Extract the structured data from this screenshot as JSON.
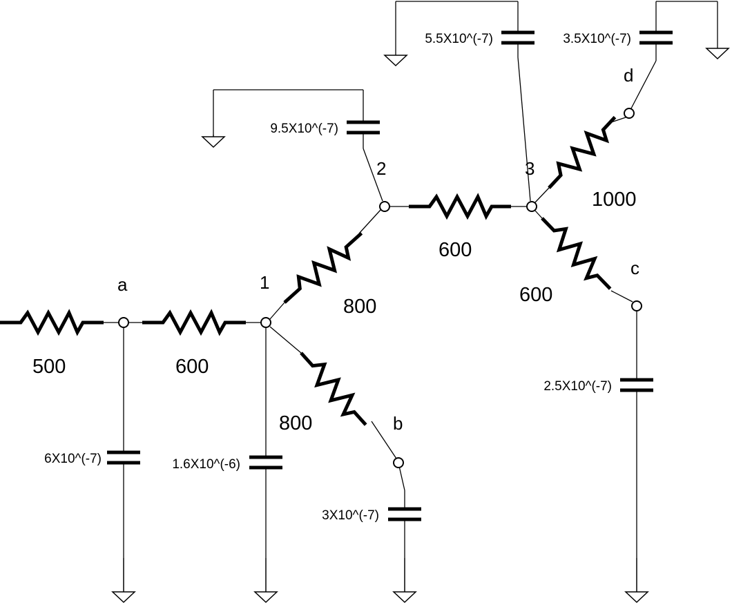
{
  "nodes": {
    "a": "a",
    "b": "b",
    "c": "c",
    "d": "d",
    "n1": "1",
    "n2": "2",
    "n3": "3"
  },
  "resistors": {
    "r_source": "500",
    "r_a1": "600",
    "r_12": "800",
    "r_1b": "800",
    "r_23": "600",
    "r_3d": "1000",
    "r_3c": "600"
  },
  "capacitors": {
    "c_a": "6X10^(-7)",
    "c_1": "1.6X10^(-6)",
    "c_b": "3X10^(-7)",
    "c_2": "9.5X10^(-7)",
    "c_3": "5.5X10^(-7)",
    "c_d": "3.5X10^(-7)",
    "c_c": "2.5X10^(-7)"
  }
}
